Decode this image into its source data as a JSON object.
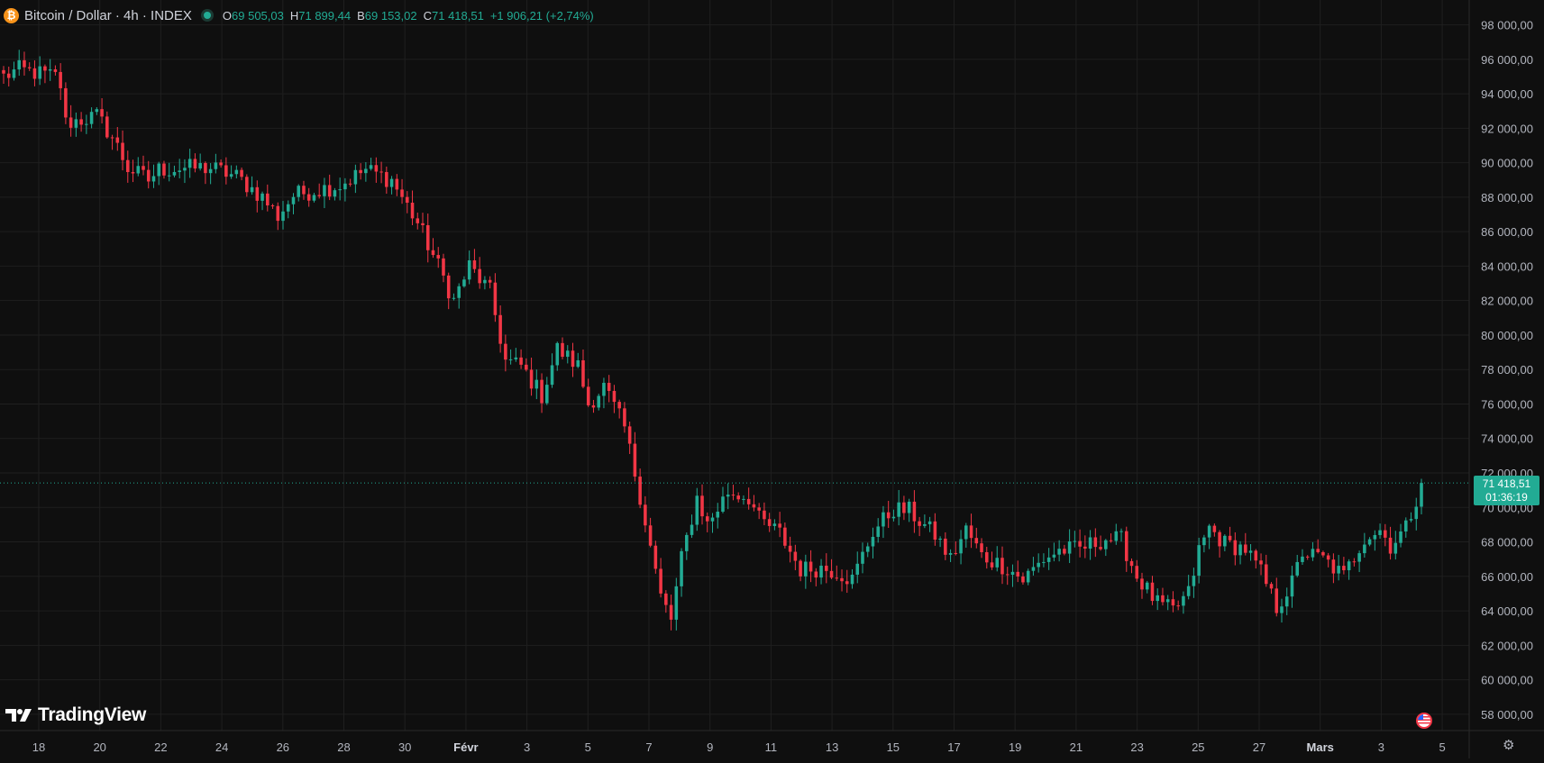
{
  "symbol": {
    "title": "Bitcoin / Dollar · 4h · INDEX",
    "coin_glyph": "₿",
    "open_label": "O",
    "open": "69 505,03",
    "high_label": "H",
    "high": "71 899,44",
    "low_label": "B",
    "low": "69 153,02",
    "close_label": "C",
    "close": "71 418,51",
    "change": "+1 906,21 (+2,74%)"
  },
  "price_tag": {
    "price": "71 418,51",
    "countdown": "01:36:19"
  },
  "branding": {
    "name": "TradingView"
  },
  "colors": {
    "background": "#0f0f0f",
    "up": "#22ab94",
    "down": "#f23645",
    "grid": "#1f1f1f",
    "axis_text": "#b2b5be"
  },
  "icons": {
    "settings": "gear-icon",
    "event": "us-flag-icon",
    "live": "live-dot-icon"
  },
  "chart_data": {
    "type": "candlestick",
    "interval": "4h",
    "yaxis": {
      "ylim": [
        57000,
        98500
      ],
      "ticks": [
        58000,
        60000,
        62000,
        64000,
        66000,
        68000,
        70000,
        72000,
        74000,
        76000,
        78000,
        80000,
        82000,
        84000,
        86000,
        88000,
        90000,
        92000,
        94000,
        96000,
        98000
      ],
      "tick_labels": [
        "58 000,00",
        "60 000,00",
        "62 000,00",
        "64 000,00",
        "66 000,00",
        "68 000,00",
        "70 000,00",
        "72 000,00",
        "74 000,00",
        "76 000,00",
        "78 000,00",
        "80 000,00",
        "82 000,00",
        "84 000,00",
        "86 000,00",
        "88 000,00",
        "90 000,00",
        "92 000,00",
        "94 000,00",
        "96 000,00",
        "98 000,00"
      ]
    },
    "xaxis": {
      "tick_labels": [
        "18",
        "20",
        "22",
        "24",
        "26",
        "28",
        "30",
        "Févr",
        "3",
        "5",
        "7",
        "9",
        "11",
        "13",
        "15",
        "17",
        "19",
        "21",
        "23",
        "25",
        "27",
        "Mars",
        "3",
        "5"
      ]
    },
    "grid": true,
    "last_price": 71418.51,
    "series": [
      {
        "type": "line",
        "values": [
          [
            0,
            95000
          ],
          [
            3,
            95400
          ],
          [
            10,
            95000
          ],
          [
            11,
            94500
          ],
          [
            12,
            92300
          ],
          [
            18,
            92700
          ],
          [
            21,
            91500
          ],
          [
            24,
            89700
          ],
          [
            28,
            89000
          ],
          [
            30,
            89600
          ],
          [
            35,
            89700
          ],
          [
            40,
            89700
          ],
          [
            45,
            89200
          ],
          [
            50,
            88000
          ],
          [
            53,
            86900
          ],
          [
            56,
            88100
          ],
          [
            60,
            88400
          ],
          [
            65,
            88700
          ],
          [
            70,
            89600
          ],
          [
            75,
            89000
          ],
          [
            80,
            86500
          ],
          [
            84,
            84000
          ],
          [
            87,
            82000
          ],
          [
            90,
            84000
          ],
          [
            94,
            82500
          ],
          [
            97,
            78500
          ],
          [
            100,
            78200
          ],
          [
            104,
            76500
          ],
          [
            107,
            79200
          ],
          [
            111,
            78200
          ],
          [
            113,
            76000
          ],
          [
            116,
            77000
          ],
          [
            120,
            74600
          ],
          [
            123,
            70700
          ],
          [
            127,
            64800
          ],
          [
            129,
            63500
          ],
          [
            131,
            67000
          ],
          [
            134,
            70600
          ],
          [
            136,
            69000
          ],
          [
            140,
            70900
          ],
          [
            144,
            70600
          ],
          [
            146,
            69300
          ],
          [
            150,
            68500
          ],
          [
            154,
            66400
          ],
          [
            158,
            66500
          ],
          [
            161,
            66300
          ],
          [
            164,
            65800
          ],
          [
            168,
            68600
          ],
          [
            172,
            69900
          ],
          [
            175,
            69800
          ],
          [
            177,
            69200
          ],
          [
            180,
            68400
          ],
          [
            183,
            67000
          ],
          [
            186,
            68700
          ],
          [
            189,
            67200
          ],
          [
            194,
            66500
          ],
          [
            197,
            65800
          ],
          [
            201,
            67000
          ],
          [
            204,
            67500
          ],
          [
            208,
            67600
          ],
          [
            213,
            68200
          ],
          [
            216,
            68100
          ],
          [
            219,
            66000
          ],
          [
            223,
            64400
          ],
          [
            226,
            64000
          ],
          [
            229,
            65000
          ],
          [
            231,
            67500
          ],
          [
            233,
            68800
          ],
          [
            236,
            67900
          ],
          [
            240,
            67600
          ],
          [
            243,
            66200
          ],
          [
            246,
            64200
          ],
          [
            249,
            65600
          ],
          [
            251,
            67400
          ],
          [
            255,
            67000
          ],
          [
            259,
            66000
          ],
          [
            263,
            68300
          ],
          [
            266,
            68700
          ],
          [
            268,
            67800
          ],
          [
            271,
            68800
          ],
          [
            274,
            71418.51
          ]
        ]
      }
    ],
    "xlabel": "",
    "ylabel": ""
  }
}
